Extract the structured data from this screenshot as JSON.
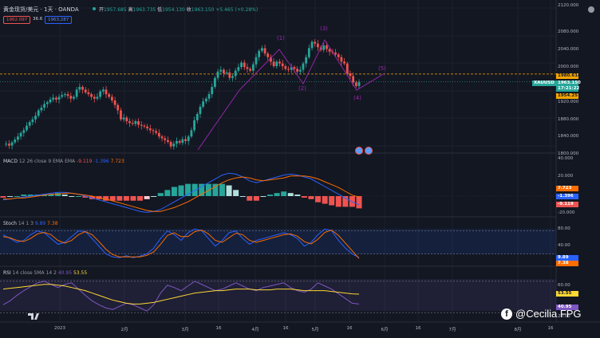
{
  "header": {
    "symbol_title": "黄金现货/美元 · 1天 · OANDA",
    "ohlc": {
      "o_label": "开",
      "o": "1957.685",
      "h_label": "高",
      "h": "1963.735",
      "l_label": "低",
      "l": "1954.130",
      "c_label": "收",
      "c": "1963.150",
      "chg": "+5.465 (+0.28%)"
    },
    "sell_price": "1962.097",
    "spread": "36.6",
    "buy_price": "1963.287"
  },
  "price_axis": {
    "ticks": [
      "2120.000",
      "2080.000",
      "2040.000",
      "2000.000",
      "1960.000",
      "1920.000",
      "1880.000",
      "1840.000",
      "1800.000"
    ],
    "tags": {
      "dashed_level": "1980.614",
      "symbol_tag": "XAUUSD",
      "last_price": "1963.150",
      "countdown": "17:21:22",
      "low_level": "1954.257"
    }
  },
  "wave_labels": [
    "(1)",
    "(2)",
    "(3)",
    "(4)",
    "(5)"
  ],
  "macd": {
    "label": "MACD",
    "params": "12 26 close 9 EMA EMA",
    "v1": "-9.119",
    "v2": "-1.396",
    "v3": "7.723",
    "axis_ticks": [
      "40.000",
      "20.000",
      "-20.000"
    ],
    "tags": [
      "7.723",
      "-1.396",
      "-9.119"
    ]
  },
  "stoch": {
    "label": "Stoch",
    "params": "14 1 3",
    "k": "9.89",
    "d": "7.38",
    "axis_ticks": [
      "80.00",
      "40.00"
    ],
    "tags": [
      "9.89",
      "7.38"
    ]
  },
  "rsi": {
    "label": "RSI",
    "params": "14 close SMA 14 2",
    "v1": "40.95",
    "v2": "53.55",
    "axis_ticks": [
      "60.00",
      "20.00"
    ],
    "tags": [
      "53.55",
      "40.95"
    ]
  },
  "time_axis": [
    "2023",
    "2月",
    "3月",
    "16",
    "4月",
    "16",
    "5月",
    "16",
    "6月",
    "16",
    "7月",
    "8月",
    "16"
  ],
  "watermark": "@Cecilia FPG",
  "colors": {
    "bg": "#131722",
    "up": "#26a69a",
    "down": "#ef5350",
    "wave": "#9c27b0",
    "macd": "#2962ff",
    "signal": "#ff6d00",
    "stoch_k": "#2962ff",
    "stoch_d": "#ff6d00",
    "rsi": "#7e57c2",
    "rsi_ma": "#fdd835",
    "dashed": "#f7a600"
  },
  "chart_data": {
    "type": "candlestick",
    "symbol": "XAUUSD",
    "price_ylim": [
      1800,
      2120
    ],
    "last_close": 1963.15,
    "dashed_level": 1980.614,
    "close_path": [
      1825,
      1826,
      1822,
      1829,
      1835,
      1842,
      1850,
      1856,
      1866,
      1874,
      1880,
      1888,
      1900,
      1906,
      1914,
      1918,
      1924,
      1928,
      1924,
      1930,
      1934,
      1936,
      1932,
      1926,
      1930,
      1946,
      1952,
      1946,
      1940,
      1936,
      1930,
      1926,
      1930,
      1942,
      1946,
      1936,
      1930,
      1922,
      1912,
      1900,
      1880,
      1884,
      1876,
      1872,
      1870,
      1876,
      1868,
      1866,
      1864,
      1860,
      1856,
      1854,
      1850,
      1842,
      1838,
      1834,
      1830,
      1820,
      1826,
      1832,
      1828,
      1836,
      1832,
      1842,
      1856,
      1878,
      1892,
      1908,
      1920,
      1926,
      1936,
      1952,
      1972,
      1986,
      1990,
      1982,
      1984,
      1972,
      1976,
      1988,
      1996,
      2006,
      1996,
      1992,
      1988,
      2002,
      2018,
      2032,
      2038,
      2026,
      2018,
      2008,
      1998,
      2008,
      2004,
      1998,
      1992,
      1990,
      1996,
      1992,
      1986,
      1990,
      2004,
      2018,
      2038,
      2052,
      2048,
      2040,
      2034,
      2044,
      2036,
      2030,
      2028,
      2024,
      2018,
      2008,
      2004,
      1982,
      1976,
      1962,
      1954,
      1963
    ],
    "macd": [
      -4,
      -3,
      -2,
      -1,
      0,
      1,
      2,
      3,
      4,
      4,
      3,
      2,
      0,
      -2,
      -4,
      -6,
      -8,
      -10,
      -12,
      -14,
      -16,
      -17,
      -16,
      -14,
      -10,
      -6,
      -2,
      2,
      6,
      10,
      14,
      18,
      22,
      24,
      23,
      20,
      16,
      14,
      16,
      18,
      20,
      22,
      23,
      22,
      20,
      18,
      14,
      10,
      6,
      2,
      -2,
      -6,
      -9
    ],
    "signal": [
      -3,
      -3,
      -2,
      -2,
      -1,
      0,
      1,
      2,
      2,
      3,
      3,
      2,
      1,
      0,
      -2,
      -3,
      -5,
      -7,
      -9,
      -11,
      -13,
      -15,
      -16,
      -16,
      -14,
      -12,
      -9,
      -6,
      -2,
      2,
      6,
      10,
      14,
      17,
      19,
      20,
      19,
      17,
      16,
      17,
      18,
      19,
      21,
      21,
      21,
      20,
      18,
      15,
      12,
      9,
      5,
      1,
      -1
    ],
    "macd_ylim": [
      -20,
      40
    ],
    "stoch_k": [
      70,
      60,
      50,
      55,
      70,
      80,
      75,
      60,
      45,
      50,
      65,
      80,
      78,
      60,
      40,
      20,
      12,
      10,
      15,
      10,
      14,
      20,
      35,
      60,
      80,
      70,
      55,
      75,
      85,
      80,
      60,
      40,
      55,
      75,
      80,
      60,
      45,
      55,
      60,
      65,
      70,
      75,
      70,
      60,
      40,
      50,
      70,
      85,
      80,
      55,
      35,
      20,
      10
    ],
    "stoch_d": [
      65,
      62,
      55,
      52,
      60,
      72,
      76,
      70,
      55,
      48,
      55,
      70,
      78,
      70,
      52,
      32,
      18,
      12,
      12,
      12,
      12,
      16,
      25,
      45,
      68,
      75,
      65,
      65,
      78,
      82,
      72,
      55,
      50,
      62,
      74,
      70,
      55,
      50,
      55,
      60,
      65,
      70,
      72,
      66,
      52,
      46,
      58,
      76,
      82,
      68,
      48,
      28,
      8
    ],
    "stoch_ylim": [
      0,
      100
    ],
    "rsi": [
      40,
      45,
      52,
      58,
      63,
      68,
      70,
      66,
      62,
      66,
      68,
      60,
      52,
      45,
      40,
      36,
      34,
      38,
      42,
      40,
      36,
      32,
      40,
      55,
      65,
      62,
      58,
      64,
      70,
      66,
      62,
      58,
      60,
      64,
      68,
      64,
      60,
      58,
      62,
      64,
      66,
      68,
      62,
      58,
      56,
      60,
      68,
      64,
      60,
      54,
      48,
      42,
      41
    ],
    "rsi_ma": [
      60,
      61,
      62,
      63,
      64,
      65,
      66,
      66,
      65,
      64,
      62,
      60,
      58,
      55,
      52,
      49,
      46,
      44,
      42,
      41,
      41,
      42,
      43,
      45,
      47,
      49,
      51,
      53,
      55,
      56,
      57,
      58,
      58,
      59,
      60,
      60,
      60,
      59,
      59,
      59,
      60,
      60,
      60,
      59,
      58,
      58,
      58,
      58,
      57,
      56,
      55,
      54,
      53.55
    ],
    "rsi_ylim": [
      20,
      80
    ]
  }
}
